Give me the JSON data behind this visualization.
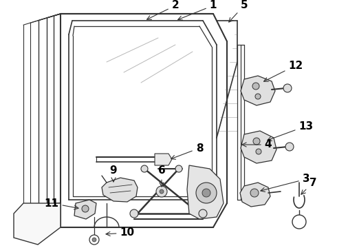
{
  "background": "#ffffff",
  "line_color": "#333333",
  "figsize": [
    4.9,
    3.6
  ],
  "dpi": 100,
  "label_fontsize": 11,
  "label_fontsize_sm": 10
}
